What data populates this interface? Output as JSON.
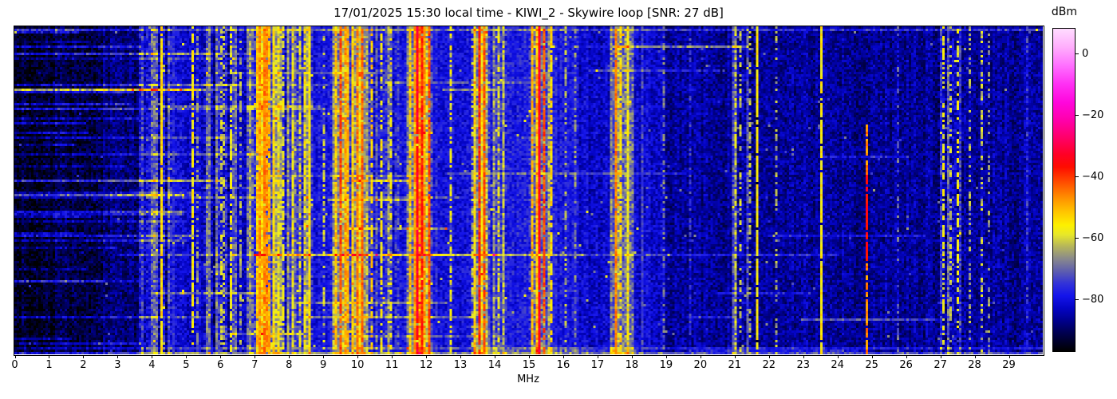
{
  "figure": {
    "title": "17/01/2025 15:30 local time - KIWI_2 - Skywire loop [SNR: 27 dB]",
    "background_color": "#ffffff",
    "text_color": "#000000"
  },
  "chart_data": {
    "type": "heatmap",
    "subtype": "hf-radio-waterfall-spectrogram",
    "title": "17/01/2025 15:30 local time - KIWI_2 - Skywire loop [SNR: 27 dB]",
    "xlabel": "MHz",
    "x_range_mhz": [
      0,
      30
    ],
    "x_ticks": [
      "0",
      "1",
      "2",
      "3",
      "4",
      "5",
      "6",
      "7",
      "8",
      "9",
      "10",
      "11",
      "12",
      "13",
      "14",
      "15",
      "16",
      "17",
      "18",
      "19",
      "20",
      "21",
      "22",
      "23",
      "24",
      "25",
      "26",
      "27",
      "28",
      "29"
    ],
    "y_axis": "time (no tick labels shown)",
    "grid": false,
    "colorbar": {
      "label": "dBm",
      "position": "right",
      "vmin": -97,
      "vmax": 8,
      "ticks": [
        {
          "v": 0,
          "label": "0"
        },
        {
          "v": -20,
          "label": "−20"
        },
        {
          "v": -40,
          "label": "−40"
        },
        {
          "v": -60,
          "label": "−60"
        },
        {
          "v": -80,
          "label": "−80"
        }
      ],
      "stops": [
        {
          "v": 8,
          "c": "#ffdcff"
        },
        {
          "v": 2,
          "c": "#ffaefc"
        },
        {
          "v": -4,
          "c": "#ff70ff"
        },
        {
          "v": -10,
          "c": "#ff30f4"
        },
        {
          "v": -16,
          "c": "#ff06dc"
        },
        {
          "v": -22,
          "c": "#ff00a8"
        },
        {
          "v": -28,
          "c": "#ff0062"
        },
        {
          "v": -33,
          "c": "#ff0024"
        },
        {
          "v": -37,
          "c": "#fe0c00"
        },
        {
          "v": -42,
          "c": "#ff4d00"
        },
        {
          "v": -47,
          "c": "#ff8f00"
        },
        {
          "v": -52,
          "c": "#ffc900"
        },
        {
          "v": -56,
          "c": "#fdf000"
        },
        {
          "v": -59,
          "c": "#e8e829"
        },
        {
          "v": -63,
          "c": "#b4b45c"
        },
        {
          "v": -67,
          "c": "#88888d"
        },
        {
          "v": -71,
          "c": "#5d5daf"
        },
        {
          "v": -75,
          "c": "#3232d8"
        },
        {
          "v": -79,
          "c": "#1414ea"
        },
        {
          "v": -83,
          "c": "#0404c4"
        },
        {
          "v": -87,
          "c": "#00008e"
        },
        {
          "v": -91,
          "c": "#000050"
        },
        {
          "v": -97,
          "c": "#000000"
        }
      ]
    },
    "background_profile": [
      {
        "f0": 0,
        "f1": 1.2,
        "level": -94
      },
      {
        "f0": 1.2,
        "f1": 2.6,
        "level": -92
      },
      {
        "f0": 2.6,
        "f1": 3.6,
        "level": -89
      },
      {
        "f0": 3.6,
        "f1": 4.6,
        "level": -84
      },
      {
        "f0": 4.6,
        "f1": 6.8,
        "level": -82
      },
      {
        "f0": 6.8,
        "f1": 16.5,
        "level": -79
      },
      {
        "f0": 16.5,
        "f1": 19.0,
        "level": -82
      },
      {
        "f0": 19.0,
        "f1": 30.0,
        "level": -86
      }
    ],
    "bands": [
      {
        "f0": 3.6,
        "f1": 4.6,
        "level": -83
      },
      {
        "f0": 5.5,
        "f1": 6.5,
        "level": -80
      },
      {
        "f0": 6.8,
        "f1": 7.75,
        "level": -67
      },
      {
        "f0": 7.75,
        "f1": 8.75,
        "level": -73
      },
      {
        "f0": 9.3,
        "f1": 10.3,
        "level": -66
      },
      {
        "f0": 10.3,
        "f1": 11.2,
        "level": -76
      },
      {
        "f0": 11.45,
        "f1": 12.2,
        "level": -65
      },
      {
        "f0": 13.4,
        "f1": 13.9,
        "level": -69
      },
      {
        "f0": 13.95,
        "f1": 14.4,
        "level": -76
      },
      {
        "f0": 15.0,
        "f1": 15.6,
        "level": -67
      },
      {
        "f0": 17.4,
        "f1": 18.05,
        "level": -72
      },
      {
        "f0": 20.9,
        "f1": 21.7,
        "level": -83
      },
      {
        "f0": 26.95,
        "f1": 27.7,
        "level": -84
      }
    ],
    "lines": [
      {
        "f": 4.28,
        "lvl": -54,
        "gate": 0.95
      },
      {
        "f": 4.65,
        "lvl": -76,
        "gate": 0.95
      },
      {
        "f": 5.21,
        "lvl": -56,
        "gate": 0.75
      },
      {
        "f": 5.34,
        "lvl": -66,
        "gate": 0.5
      },
      {
        "f": 6.0,
        "lvl": -60,
        "gate": 0.6
      },
      {
        "f": 6.12,
        "lvl": -63,
        "gate": 0.5
      },
      {
        "f": 6.28,
        "lvl": -58,
        "gate": 0.55
      },
      {
        "f": 6.62,
        "lvl": -64,
        "gate": 0.5
      },
      {
        "f": 7.05,
        "lvl": -52,
        "gate": 0.9
      },
      {
        "f": 7.18,
        "lvl": -48,
        "gate": 0.92
      },
      {
        "f": 7.27,
        "lvl": -46,
        "gate": 0.92
      },
      {
        "f": 7.36,
        "lvl": -47,
        "gate": 0.9
      },
      {
        "f": 7.45,
        "lvl": -50,
        "gate": 0.85
      },
      {
        "f": 7.58,
        "lvl": -54,
        "gate": 0.8
      },
      {
        "f": 7.86,
        "lvl": -58,
        "gate": 0.6
      },
      {
        "f": 8.1,
        "lvl": -57,
        "gate": 0.6
      },
      {
        "f": 8.33,
        "lvl": -58,
        "gate": 0.55
      },
      {
        "f": 8.47,
        "lvl": -56,
        "gate": 0.6
      },
      {
        "f": 8.6,
        "lvl": -55,
        "gate": 0.7
      },
      {
        "f": 9.05,
        "lvl": -61,
        "gate": 0.5
      },
      {
        "f": 9.41,
        "lvl": -52,
        "gate": 0.85
      },
      {
        "f": 9.52,
        "lvl": -42,
        "gate": 0.9
      },
      {
        "f": 9.63,
        "lvl": -48,
        "gate": 0.85
      },
      {
        "f": 9.76,
        "lvl": -50,
        "gate": 0.85
      },
      {
        "f": 9.9,
        "lvl": -53,
        "gate": 0.8
      },
      {
        "f": 10.0,
        "lvl": -45,
        "gate": 0.9
      },
      {
        "f": 10.17,
        "lvl": -44,
        "gate": 0.95
      },
      {
        "f": 10.45,
        "lvl": -52,
        "gate": 0.6
      },
      {
        "f": 10.68,
        "lvl": -56,
        "gate": 0.5
      },
      {
        "f": 11.0,
        "lvl": -58,
        "gate": 0.5
      },
      {
        "f": 11.55,
        "lvl": -52,
        "gate": 0.8
      },
      {
        "f": 11.68,
        "lvl": -48,
        "gate": 0.9
      },
      {
        "f": 11.78,
        "lvl": -33,
        "gate": 0.98
      },
      {
        "f": 11.88,
        "lvl": -38,
        "gate": 0.95
      },
      {
        "f": 11.98,
        "lvl": -48,
        "gate": 0.85
      },
      {
        "f": 12.08,
        "lvl": -42,
        "gate": 0.9
      },
      {
        "f": 12.75,
        "lvl": -58,
        "gate": 0.6
      },
      {
        "f": 13.35,
        "lvl": -62,
        "gate": 0.5
      },
      {
        "f": 13.58,
        "lvl": -39,
        "gate": 0.95
      },
      {
        "f": 13.72,
        "lvl": -43,
        "gate": 0.9
      },
      {
        "f": 14.1,
        "lvl": -58,
        "gate": 0.5
      },
      {
        "f": 14.25,
        "lvl": -60,
        "gate": 0.45
      },
      {
        "f": 15.12,
        "lvl": -50,
        "gate": 0.85
      },
      {
        "f": 15.32,
        "lvl": -33,
        "gate": 0.98
      },
      {
        "f": 15.45,
        "lvl": -42,
        "gate": 0.9
      },
      {
        "f": 15.68,
        "lvl": -54,
        "gate": 0.75
      },
      {
        "f": 16.1,
        "lvl": -64,
        "gate": 0.45
      },
      {
        "f": 16.35,
        "lvl": -66,
        "gate": 0.4
      },
      {
        "f": 17.56,
        "lvl": -46,
        "gate": 0.95
      },
      {
        "f": 17.72,
        "lvl": -54,
        "gate": 0.7
      },
      {
        "f": 17.92,
        "lvl": -58,
        "gate": 0.55
      },
      {
        "f": 18.3,
        "lvl": -73,
        "gate": 0.6
      },
      {
        "f": 18.95,
        "lvl": -68,
        "gate": 0.4
      },
      {
        "f": 19.7,
        "lvl": -74,
        "gate": 0.4
      },
      {
        "f": 21.05,
        "lvl": -60,
        "gate": 0.5
      },
      {
        "f": 21.2,
        "lvl": -62,
        "gate": 0.45
      },
      {
        "f": 21.45,
        "lvl": -63,
        "gate": 0.4
      },
      {
        "f": 21.65,
        "lvl": -56,
        "gate": 0.92
      },
      {
        "f": 22.2,
        "lvl": -64,
        "gate": 0.4
      },
      {
        "f": 23.52,
        "lvl": -56,
        "gate": 0.92
      },
      {
        "f": 24.88,
        "lvl": -46,
        "gate": 0.85,
        "tmin": 0.3,
        "core": -36,
        "coreT": [
          0.45,
          0.72
        ]
      },
      {
        "f": 25.8,
        "lvl": -70,
        "gate": 0.35
      },
      {
        "f": 27.08,
        "lvl": -58,
        "gate": 0.5
      },
      {
        "f": 27.3,
        "lvl": -62,
        "gate": 0.45
      },
      {
        "f": 27.55,
        "lvl": -58,
        "gate": 0.5
      },
      {
        "f": 27.9,
        "lvl": -64,
        "gate": 0.4
      },
      {
        "f": 28.2,
        "lvl": -62,
        "gate": 0.45
      },
      {
        "f": 28.45,
        "lvl": -66,
        "gate": 0.35
      },
      {
        "f": 29.55,
        "lvl": -74,
        "gate": 0.35
      }
    ],
    "streaks": [
      {
        "t": 0.004,
        "f0": 0,
        "f1": 30,
        "boost": 9
      },
      {
        "t": 0.695,
        "f0": 3,
        "f1": 7,
        "boost": 9
      },
      {
        "t": 0.695,
        "f0": 7,
        "f1": 14,
        "boost": 21
      },
      {
        "t": 0.695,
        "f0": 14,
        "f1": 16.5,
        "boost": 13
      },
      {
        "t": 0.695,
        "f0": 16.5,
        "f1": 24,
        "boost": 8
      },
      {
        "t": 0.47,
        "f0": 9.9,
        "f1": 11.4,
        "boost": 16
      },
      {
        "t": 0.528,
        "f0": 9.2,
        "f1": 11.5,
        "boost": 14
      },
      {
        "t": 0.615,
        "f0": 9.7,
        "f1": 12.5,
        "boost": 11
      },
      {
        "t": 0.45,
        "f0": 12.6,
        "f1": 19.5,
        "boost": 7
      },
      {
        "t": 0.13,
        "f0": 16.8,
        "f1": 20.5,
        "boost": 8
      },
      {
        "t": 0.25,
        "f0": 0,
        "f1": 9.0,
        "boost": 7
      },
      {
        "t": 0.335,
        "f0": 0,
        "f1": 6.2,
        "boost": 8
      },
      {
        "t": 0.52,
        "f0": 0,
        "f1": 7.5,
        "boost": 8
      },
      {
        "t": 0.64,
        "f0": 22.0,
        "f1": 26.5,
        "boost": 8
      },
      {
        "t": 0.4,
        "f0": 23.5,
        "f1": 26.0,
        "boost": 7
      },
      {
        "t": 0.985,
        "f0": 0,
        "f1": 30,
        "boost": 8
      },
      {
        "t": 1.0,
        "f0": 0,
        "f1": 30,
        "boost": 13
      }
    ],
    "noise": {
      "sigma_bg": 4.8,
      "sigma_band": 6.5,
      "pop_prob_band": 0.012,
      "pop_prob_mid": 0.007,
      "pop_prob_quiet": 0.004,
      "random_streaks": {
        "count": 60,
        "left_bias": 0.72,
        "boost_min": 5,
        "boost_max": 13
      }
    },
    "render": {
      "cols": 430,
      "rows": 137,
      "seed": 20250117
    }
  }
}
